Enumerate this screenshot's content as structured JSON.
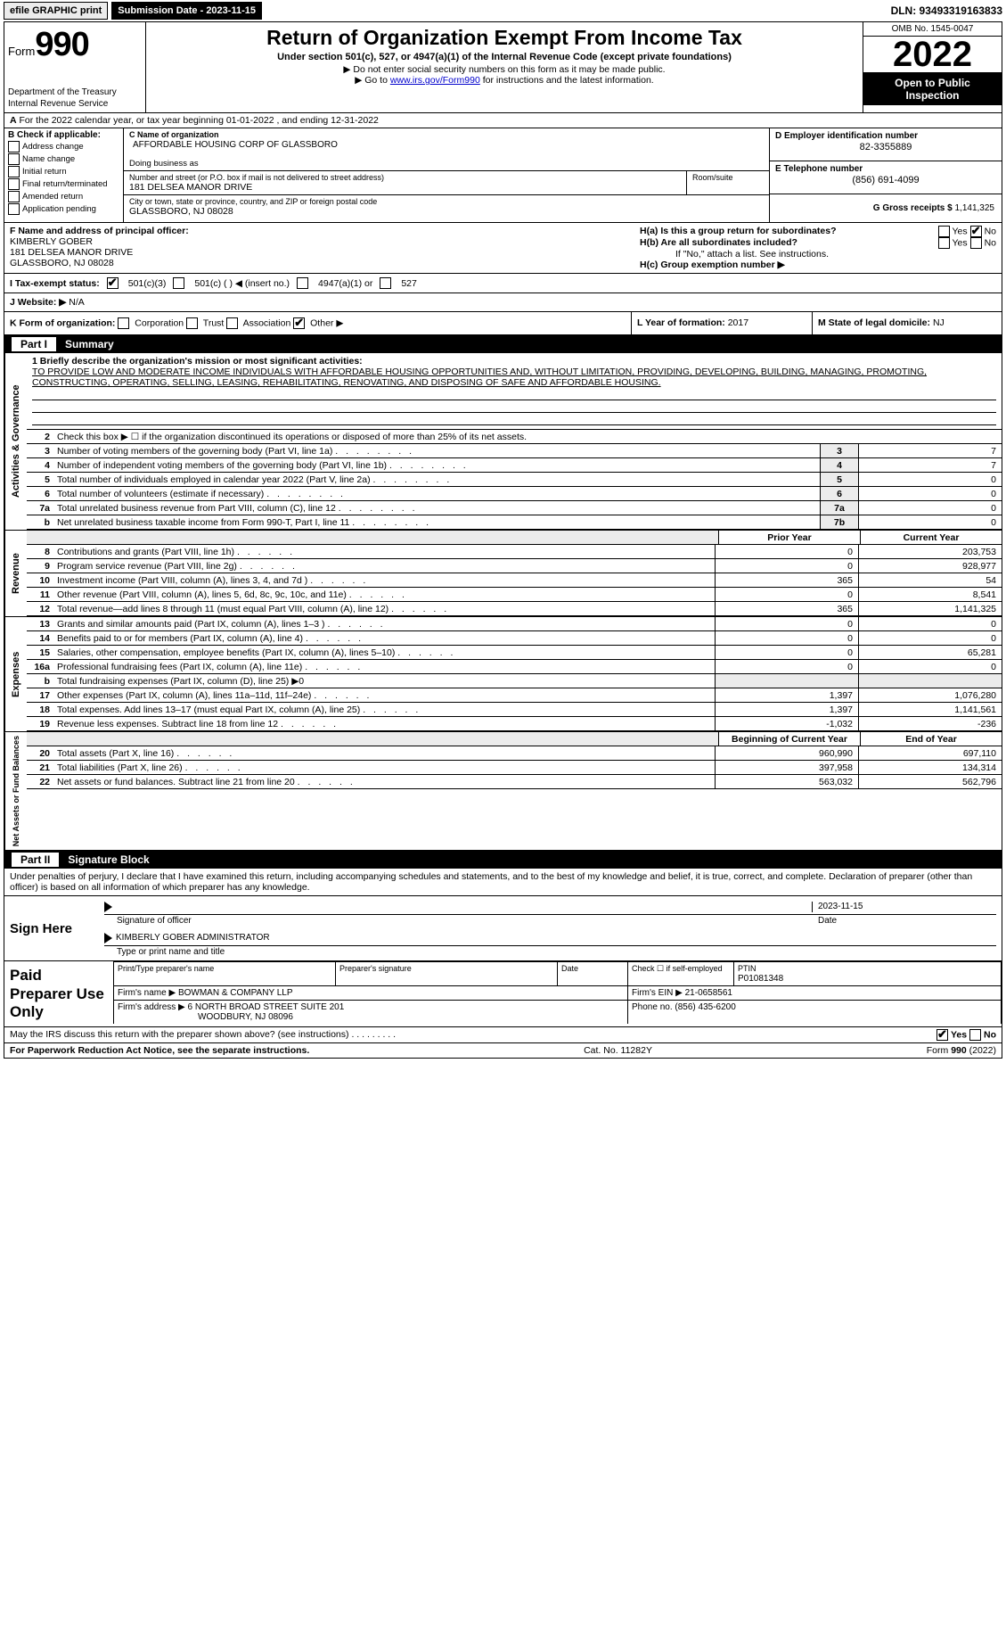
{
  "topbar": {
    "efile": "efile GRAPHIC print",
    "submission": "Submission Date - 2023-11-15",
    "dln": "DLN: 93493319163833"
  },
  "header": {
    "form_prefix": "Form",
    "form_num": "990",
    "dept": "Department of the Treasury",
    "irs": "Internal Revenue Service",
    "title": "Return of Organization Exempt From Income Tax",
    "sub1": "Under section 501(c), 527, or 4947(a)(1) of the Internal Revenue Code (except private foundations)",
    "sub2": "▶ Do not enter social security numbers on this form as it may be made public.",
    "sub3_pre": "▶ Go to ",
    "sub3_link": "www.irs.gov/Form990",
    "sub3_post": " for instructions and the latest information.",
    "omb": "OMB No. 1545-0047",
    "year": "2022",
    "open": "Open to Public Inspection"
  },
  "row_a": "For the 2022 calendar year, or tax year beginning 01-01-2022    , and ending 12-31-2022",
  "section_b": {
    "label": "B Check if applicable:",
    "checks": [
      "Address change",
      "Name change",
      "Initial return",
      "Final return/terminated",
      "Amended return",
      "Application pending"
    ],
    "c_lbl": "C Name of organization",
    "c_val": "AFFORDABLE HOUSING CORP OF GLASSBORO",
    "dba_lbl": "Doing business as",
    "addr_lbl": "Number and street (or P.O. box if mail is not delivered to street address)",
    "addr_val": "181 DELSEA MANOR DRIVE",
    "room_lbl": "Room/suite",
    "city_lbl": "City or town, state or province, country, and ZIP or foreign postal code",
    "city_val": "GLASSBORO, NJ  08028",
    "d_lbl": "D Employer identification number",
    "d_val": "82-3355889",
    "e_lbl": "E Telephone number",
    "e_val": "(856) 691-4099",
    "g_lbl": "G Gross receipts $",
    "g_val": "1,141,325"
  },
  "fgh": {
    "f_lbl": "F Name and address of principal officer:",
    "f_name": "KIMBERLY GOBER",
    "f_addr1": "181 DELSEA MANOR DRIVE",
    "f_addr2": "GLASSBORO, NJ  08028",
    "ha": "H(a)  Is this a group return for subordinates?",
    "hb": "H(b)  Are all subordinates included?",
    "hb_note": "If \"No,\" attach a list. See instructions.",
    "hc": "H(c)  Group exemption number ▶",
    "yes": "Yes",
    "no": "No"
  },
  "status": {
    "i": "I   Tax-exempt status:",
    "opts": [
      "501(c)(3)",
      "501(c) (  ) ◀ (insert no.)",
      "4947(a)(1) or",
      "527"
    ]
  },
  "website": {
    "j": "J   Website: ▶",
    "val": " N/A"
  },
  "klm": {
    "k": "K Form of organization:",
    "k_opts": [
      "Corporation",
      "Trust",
      "Association",
      "Other ▶"
    ],
    "l_lbl": "L Year of formation:",
    "l_val": "2017",
    "m_lbl": "M State of legal domicile:",
    "m_val": "NJ"
  },
  "part1": {
    "title": "Part I",
    "name": "Summary",
    "side_ag": "Activities & Governance",
    "side_rev": "Revenue",
    "side_exp": "Expenses",
    "side_na": "Net Assets or Fund Balances",
    "q1_lbl": "1 Briefly describe the organization's mission or most significant activities:",
    "q1_val": "TO PROVIDE LOW AND MODERATE INCOME INDIVIDUALS WITH AFFORDABLE HOUSING OPPORTUNITIES AND, WITHOUT LIMITATION, PROVIDING, DEVELOPING, BUILDING, MANAGING, PROMOTING, CONSTRUCTING, OPERATING, SELLING, LEASING, REHABILITATING, RENOVATING, AND DISPOSING OF SAFE AND AFFORDABLE HOUSING.",
    "q2": "Check this box ▶ ☐ if the organization discontinued its operations or disposed of more than 25% of its net assets.",
    "rows_ag": [
      {
        "n": "3",
        "t": "Number of voting members of the governing body (Part VI, line 1a)",
        "b": "3",
        "v": "7"
      },
      {
        "n": "4",
        "t": "Number of independent voting members of the governing body (Part VI, line 1b)",
        "b": "4",
        "v": "7"
      },
      {
        "n": "5",
        "t": "Total number of individuals employed in calendar year 2022 (Part V, line 2a)",
        "b": "5",
        "v": "0"
      },
      {
        "n": "6",
        "t": "Total number of volunteers (estimate if necessary)",
        "b": "6",
        "v": "0"
      },
      {
        "n": "7a",
        "t": "Total unrelated business revenue from Part VIII, column (C), line 12",
        "b": "7a",
        "v": "0"
      },
      {
        "n": "b",
        "t": "Net unrelated business taxable income from Form 990-T, Part I, line 11",
        "b": "7b",
        "v": "0"
      }
    ],
    "hdr_prior": "Prior Year",
    "hdr_curr": "Current Year",
    "rows_rev": [
      {
        "n": "8",
        "t": "Contributions and grants (Part VIII, line 1h)",
        "p": "0",
        "c": "203,753"
      },
      {
        "n": "9",
        "t": "Program service revenue (Part VIII, line 2g)",
        "p": "0",
        "c": "928,977"
      },
      {
        "n": "10",
        "t": "Investment income (Part VIII, column (A), lines 3, 4, and 7d )",
        "p": "365",
        "c": "54"
      },
      {
        "n": "11",
        "t": "Other revenue (Part VIII, column (A), lines 5, 6d, 8c, 9c, 10c, and 11e)",
        "p": "0",
        "c": "8,541"
      },
      {
        "n": "12",
        "t": "Total revenue—add lines 8 through 11 (must equal Part VIII, column (A), line 12)",
        "p": "365",
        "c": "1,141,325"
      }
    ],
    "rows_exp": [
      {
        "n": "13",
        "t": "Grants and similar amounts paid (Part IX, column (A), lines 1–3 )",
        "p": "0",
        "c": "0"
      },
      {
        "n": "14",
        "t": "Benefits paid to or for members (Part IX, column (A), line 4)",
        "p": "0",
        "c": "0"
      },
      {
        "n": "15",
        "t": "Salaries, other compensation, employee benefits (Part IX, column (A), lines 5–10)",
        "p": "0",
        "c": "65,281"
      },
      {
        "n": "16a",
        "t": "Professional fundraising fees (Part IX, column (A), line 11e)",
        "p": "0",
        "c": "0"
      },
      {
        "n": "b",
        "t": "Total fundraising expenses (Part IX, column (D), line 25) ▶0",
        "p": "",
        "c": "",
        "grey": true
      },
      {
        "n": "17",
        "t": "Other expenses (Part IX, column (A), lines 11a–11d, 11f–24e)",
        "p": "1,397",
        "c": "1,076,280"
      },
      {
        "n": "18",
        "t": "Total expenses. Add lines 13–17 (must equal Part IX, column (A), line 25)",
        "p": "1,397",
        "c": "1,141,561"
      },
      {
        "n": "19",
        "t": "Revenue less expenses. Subtract line 18 from line 12",
        "p": "-1,032",
        "c": "-236"
      }
    ],
    "hdr_boy": "Beginning of Current Year",
    "hdr_eoy": "End of Year",
    "rows_na": [
      {
        "n": "20",
        "t": "Total assets (Part X, line 16)",
        "p": "960,990",
        "c": "697,110"
      },
      {
        "n": "21",
        "t": "Total liabilities (Part X, line 26)",
        "p": "397,958",
        "c": "134,314"
      },
      {
        "n": "22",
        "t": "Net assets or fund balances. Subtract line 21 from line 20",
        "p": "563,032",
        "c": "562,796"
      }
    ]
  },
  "part2": {
    "title": "Part II",
    "name": "Signature Block",
    "note": "Under penalties of perjury, I declare that I have examined this return, including accompanying schedules and statements, and to the best of my knowledge and belief, it is true, correct, and complete. Declaration of preparer (other than officer) is based on all information of which preparer has any knowledge.",
    "sign": "Sign Here",
    "sig_officer": "Signature of officer",
    "date": "Date",
    "date_val": "2023-11-15",
    "name_title": "KIMBERLY GOBER  ADMINISTRATOR",
    "type_name": "Type or print name and title",
    "paid": "Paid Preparer Use Only",
    "pt_name_lbl": "Print/Type preparer's name",
    "prep_sig_lbl": "Preparer's signature",
    "date_lbl": "Date",
    "check_self": "Check ☐ if self-employed",
    "ptin_lbl": "PTIN",
    "ptin": "P01081348",
    "firm_name_lbl": "Firm's name    ▶",
    "firm_name": "BOWMAN & COMPANY LLP",
    "firm_ein_lbl": "Firm's EIN ▶",
    "firm_ein": "21-0658561",
    "firm_addr_lbl": "Firm's address ▶",
    "firm_addr1": "6 NORTH BROAD STREET SUITE 201",
    "firm_addr2": "WOODBURY, NJ  08096",
    "phone_lbl": "Phone no.",
    "phone": "(856) 435-6200",
    "may": "May the IRS discuss this return with the preparer shown above? (see instructions)",
    "foot_l": "For Paperwork Reduction Act Notice, see the separate instructions.",
    "foot_m": "Cat. No. 11282Y",
    "foot_r": "Form 990 (2022)"
  }
}
